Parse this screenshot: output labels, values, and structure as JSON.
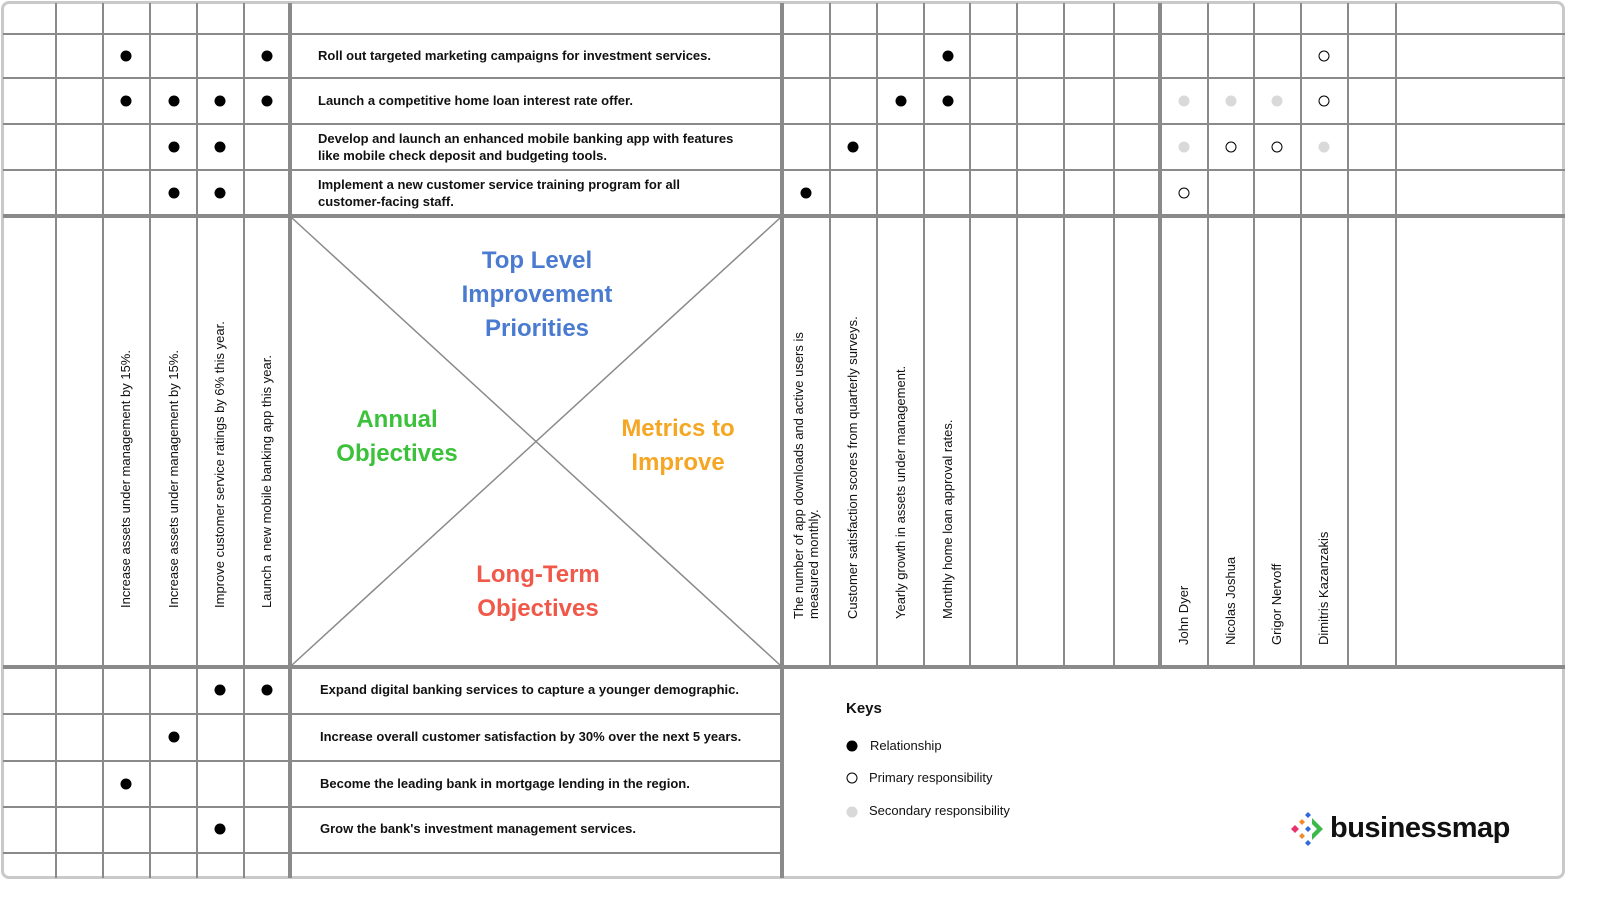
{
  "colors": {
    "top": "#4a7bd0",
    "left": "#3cc13b",
    "right": "#f5a623",
    "bottom": "#f0584a",
    "grid": "#888888",
    "secondary": "#d9d9d9"
  },
  "quadrants": {
    "top": "Top Level Improvement Priorities",
    "left": "Annual Objectives",
    "right": "Metrics to Improve",
    "bottom": "Long-Term Objectives"
  },
  "priorities": [
    {
      "text": "Roll out targeted marketing campaigns for investment services.",
      "objectives": [
        2,
        5
      ],
      "metrics": [
        3
      ],
      "people": {
        "3": "primary"
      }
    },
    {
      "text": "Launch a competitive home loan interest rate offer.",
      "objectives": [
        2,
        3,
        4,
        5
      ],
      "metrics": [
        2,
        3
      ],
      "people": {
        "0": "secondary",
        "1": "secondary",
        "2": "secondary",
        "3": "primary"
      }
    },
    {
      "text": "Develop and launch an enhanced mobile banking app with features like mobile check deposit and budgeting tools.",
      "objectives": [
        3,
        4
      ],
      "metrics": [
        1
      ],
      "people": {
        "0": "secondary",
        "1": "primary",
        "2": "primary",
        "3": "secondary"
      }
    },
    {
      "text": "Implement a new customer service training program for all customer-facing staff.",
      "objectives": [
        3,
        4
      ],
      "metrics": [
        0
      ],
      "people": {
        "0": "primary"
      }
    }
  ],
  "annual_objectives": [
    "",
    "",
    "Increase assets under management by 15%.",
    "Increase assets under management by 15%.",
    "Improve customer service ratings by 6% this year.",
    "Launch a new mobile banking app this year."
  ],
  "metrics": [
    "The number of app downloads and active users is measured monthly.",
    "Customer satisfaction scores from quarterly surveys.",
    "Yearly growth in assets under management.",
    "Monthly home loan approval rates.",
    "",
    "",
    "",
    ""
  ],
  "people": [
    "John Dyer",
    "Nicolas Joshua",
    "Grigor Nervoff",
    "Dimitris Kazanzakis",
    "",
    ""
  ],
  "long_term": [
    {
      "text": "Expand digital banking services to capture a younger demographic.",
      "objectives": [
        4,
        5
      ]
    },
    {
      "text": "Increase overall customer satisfaction by 30% over the next 5 years.",
      "objectives": [
        3
      ]
    },
    {
      "text": "Become the leading bank in mortgage lending in the region.",
      "objectives": [
        2
      ]
    },
    {
      "text": "Grow the bank's investment management services.",
      "objectives": [
        4
      ]
    }
  ],
  "keys": {
    "title": "Keys",
    "items": [
      {
        "type": "filled",
        "label": "Relationship"
      },
      {
        "type": "primary",
        "label": "Primary responsibility"
      },
      {
        "type": "secondary",
        "label": "Secondary responsibility"
      }
    ]
  },
  "logo": {
    "text": "businessmap"
  }
}
